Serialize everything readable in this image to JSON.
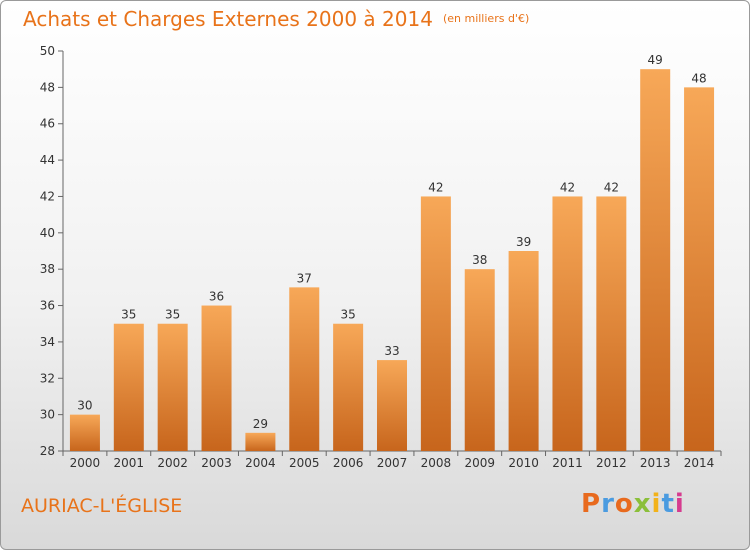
{
  "title": "Achats et Charges Externes 2000 à 2014",
  "unit": "(en milliers d'€)",
  "place": "AURIAC-L'ÉGLISE",
  "brand": {
    "name": "Proxiti",
    "letters": [
      "P",
      "r",
      "o",
      "x",
      "i",
      "t",
      "i"
    ],
    "letter_colors": [
      "#e86a1e",
      "#4a9be0",
      "#e86a1e",
      "#8bbf3a",
      "#f2b21a",
      "#4a9be0",
      "#d63b8f"
    ]
  },
  "colors": {
    "accent": "#e8731a",
    "bar_top": "#f7a858",
    "bar_bottom": "#c7651c"
  },
  "chart_data": {
    "type": "bar",
    "categories": [
      "2000",
      "2001",
      "2002",
      "2003",
      "2004",
      "2005",
      "2006",
      "2007",
      "2008",
      "2009",
      "2010",
      "2011",
      "2012",
      "2013",
      "2014"
    ],
    "values": [
      30,
      35,
      35,
      36,
      29,
      37,
      35,
      33,
      42,
      38,
      39,
      42,
      42,
      49,
      48
    ],
    "title": "Achats et Charges Externes 2000 à 2014",
    "ylim": [
      28,
      50
    ],
    "yticks": [
      28,
      30,
      32,
      34,
      36,
      38,
      40,
      42,
      44,
      46,
      48,
      50
    ],
    "grid": false
  }
}
